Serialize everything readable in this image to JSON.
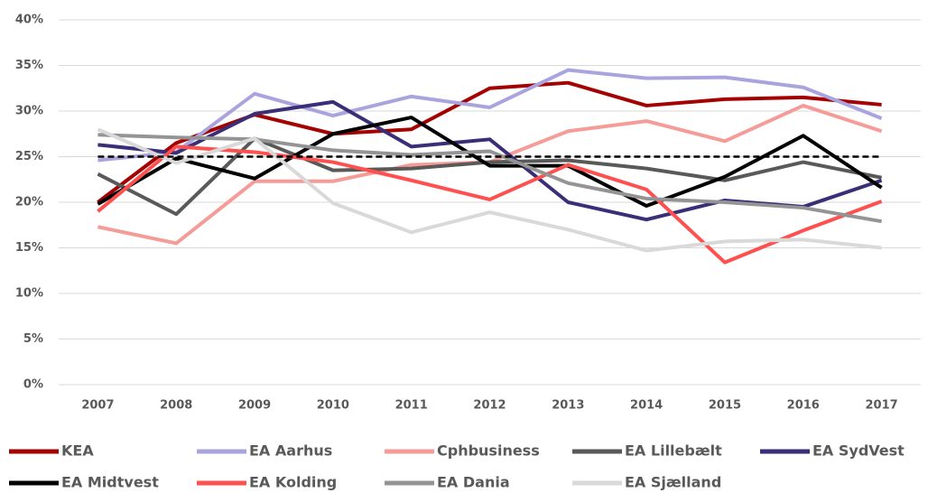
{
  "chart_data": {
    "type": "line",
    "categories": [
      "2007",
      "2008",
      "2009",
      "2010",
      "2011",
      "2012",
      "2013",
      "2014",
      "2015",
      "2016",
      "2017"
    ],
    "series": [
      {
        "name": "KEA",
        "color": "#a50000",
        "values": [
          20.0,
          26.5,
          29.6,
          27.5,
          28.0,
          32.5,
          33.1,
          30.6,
          31.3,
          31.5,
          30.7
        ]
      },
      {
        "name": "EA Aarhus",
        "color": "#aaa4de",
        "values": [
          24.6,
          25.5,
          31.9,
          29.5,
          31.6,
          30.4,
          34.5,
          33.6,
          33.7,
          32.6,
          29.2
        ]
      },
      {
        "name": "Cphbusiness",
        "color": "#f59c98",
        "values": [
          17.3,
          15.5,
          22.3,
          22.3,
          24.1,
          24.4,
          27.8,
          28.9,
          26.7,
          30.6,
          27.8
        ]
      },
      {
        "name": "EA Lillebælt",
        "color": "#595959",
        "values": [
          23.1,
          18.7,
          27.0,
          23.5,
          23.7,
          24.4,
          24.6,
          23.7,
          22.4,
          24.4,
          22.7
        ]
      },
      {
        "name": "EA SydVest",
        "color": "#3a2e78",
        "values": [
          26.3,
          25.4,
          29.7,
          31.0,
          26.1,
          26.9,
          20.0,
          18.1,
          20.2,
          19.5,
          22.4
        ]
      },
      {
        "name": "EA Midtvest",
        "color": "#000000",
        "values": [
          19.8,
          24.8,
          22.6,
          27.5,
          29.3,
          24.0,
          24.0,
          19.6,
          22.8,
          27.3,
          21.6
        ]
      },
      {
        "name": "EA Kolding",
        "color": "#ff5050",
        "values": [
          19.0,
          26.1,
          25.5,
          24.4,
          22.4,
          20.3,
          24.1,
          21.4,
          13.4,
          16.9,
          20.1
        ]
      },
      {
        "name": "EA Dania",
        "color": "#949494",
        "values": [
          27.4,
          27.1,
          26.9,
          25.7,
          25.2,
          25.6,
          22.1,
          20.4,
          20.0,
          19.4,
          17.9
        ]
      },
      {
        "name": "EA Sjælland",
        "color": "#d9d9d9",
        "values": [
          28.0,
          24.3,
          27.0,
          19.9,
          16.7,
          18.9,
          17.0,
          14.7,
          15.7,
          15.9,
          15.0
        ]
      }
    ],
    "reference_line": 25,
    "ylim": [
      0,
      40
    ],
    "yticks": [
      {
        "value": 0,
        "label": "0%"
      },
      {
        "value": 5,
        "label": "5%"
      },
      {
        "value": 10,
        "label": "10%"
      },
      {
        "value": 15,
        "label": "15%"
      },
      {
        "value": 20,
        "label": "20%"
      },
      {
        "value": 25,
        "label": "25%"
      },
      {
        "value": 30,
        "label": "30%"
      },
      {
        "value": 35,
        "label": "35%"
      },
      {
        "value": 40,
        "label": "40%"
      }
    ],
    "grid": true,
    "legend": "bottom"
  }
}
